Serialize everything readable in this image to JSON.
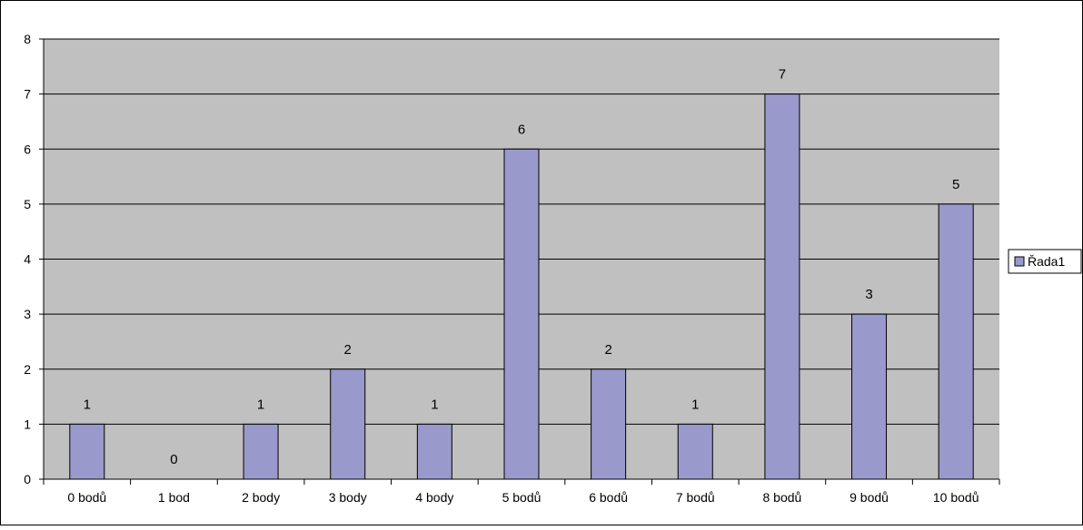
{
  "chart_data": {
    "type": "bar",
    "categories": [
      "0 bodů",
      "1 bod",
      "2 body",
      "3 body",
      "4 body",
      "5 bodů",
      "6 bodů",
      "7 bodů",
      "8 bodů",
      "9 bodů",
      "10 bodů"
    ],
    "series": [
      {
        "name": "Řada1",
        "values": [
          1,
          0,
          1,
          2,
          1,
          6,
          2,
          1,
          7,
          3,
          5
        ],
        "color": "#9999cc"
      }
    ],
    "ylim": [
      0,
      8
    ],
    "yticks": [
      0,
      1,
      2,
      3,
      4,
      5,
      6,
      7,
      8
    ],
    "grid": true,
    "legend": "right",
    "data_labels": true,
    "plot_background": "#c0c0c0"
  }
}
